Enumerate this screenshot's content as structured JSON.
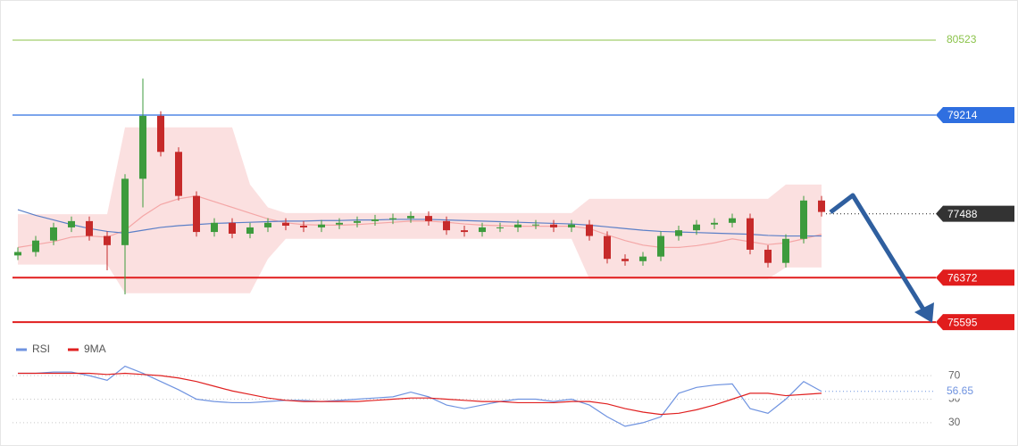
{
  "chart_data": [
    {
      "type": "candlestick",
      "ylim": [
        75300,
        81225
      ],
      "up_color": "#3d9b3d",
      "down_color": "#c62a2a",
      "open": [
        76760,
        76820,
        77020,
        77250,
        77360,
        77100,
        76940,
        78100,
        79200,
        78570,
        77800,
        77170,
        77330,
        77140,
        77250,
        77330,
        77280,
        77250,
        77300,
        77330,
        77360,
        77390,
        77410,
        77450,
        77360,
        77200,
        77170,
        77250,
        77250,
        77300,
        77300,
        77250,
        77300,
        77100,
        76700,
        76660,
        76740,
        77100,
        77200,
        77300,
        77330,
        77410,
        76860,
        76630,
        77050,
        77720
      ],
      "high": [
        76900,
        77100,
        77330,
        77440,
        77440,
        77180,
        78180,
        79850,
        79280,
        78650,
        77880,
        77410,
        77410,
        77330,
        77410,
        77410,
        77360,
        77380,
        77410,
        77440,
        77470,
        77490,
        77530,
        77530,
        77440,
        77280,
        77330,
        77330,
        77380,
        77380,
        77380,
        77380,
        77380,
        77180,
        76780,
        76820,
        77180,
        77280,
        77380,
        77410,
        77490,
        77490,
        76940,
        77130,
        77800,
        77800
      ],
      "low": [
        76680,
        76740,
        76940,
        77170,
        77020,
        76500,
        76080,
        77600,
        78490,
        77720,
        77090,
        77090,
        77060,
        77060,
        77170,
        77200,
        77170,
        77170,
        77220,
        77250,
        77280,
        77310,
        77330,
        77280,
        77120,
        77090,
        77090,
        77170,
        77170,
        77220,
        77170,
        77170,
        77020,
        76620,
        76580,
        76580,
        76660,
        77020,
        77120,
        77220,
        77250,
        76780,
        76550,
        76550,
        76970,
        77440
      ],
      "close": [
        76820,
        77020,
        77250,
        77360,
        77100,
        76940,
        78100,
        79200,
        78570,
        77800,
        77170,
        77330,
        77140,
        77250,
        77330,
        77280,
        77250,
        77300,
        77330,
        77360,
        77390,
        77410,
        77450,
        77360,
        77200,
        77170,
        77250,
        77250,
        77300,
        77300,
        77250,
        77300,
        77100,
        76700,
        76660,
        76740,
        77100,
        77200,
        77300,
        77330,
        77410,
        76860,
        76630,
        77050,
        77720,
        77520
      ],
      "bands": {
        "color": "#f4a6a6",
        "upper": [
          77480,
          77480,
          77480,
          77480,
          77480,
          77480,
          79000,
          79000,
          79000,
          79000,
          79000,
          79000,
          79000,
          78000,
          77600,
          77500,
          77500,
          77500,
          77500,
          77500,
          77500,
          77500,
          77500,
          77500,
          77500,
          77500,
          77500,
          77500,
          77500,
          77500,
          77500,
          77500,
          77750,
          77750,
          77750,
          77750,
          77750,
          77750,
          77750,
          77750,
          77750,
          77750,
          77750,
          78000,
          78000,
          78000
        ],
        "lower": [
          76600,
          76600,
          76600,
          76600,
          76600,
          76600,
          76100,
          76100,
          76100,
          76100,
          76100,
          76100,
          76100,
          76100,
          76700,
          77050,
          77050,
          77050,
          77050,
          77050,
          77050,
          77050,
          77050,
          77050,
          77050,
          77050,
          77050,
          77050,
          77050,
          77050,
          77050,
          77050,
          76350,
          76350,
          76350,
          76350,
          76350,
          76350,
          76350,
          76350,
          76350,
          76350,
          76350,
          76550,
          76550,
          76550
        ],
        "middle": [
          76900,
          76950,
          77000,
          77080,
          77100,
          77080,
          77200,
          77450,
          77650,
          77750,
          77800,
          77700,
          77600,
          77500,
          77400,
          77330,
          77300,
          77290,
          77290,
          77300,
          77320,
          77340,
          77360,
          77360,
          77340,
          77310,
          77290,
          77280,
          77270,
          77270,
          77270,
          77270,
          77230,
          77120,
          77020,
          76940,
          76900,
          76900,
          76930,
          76980,
          77050,
          77000,
          76950,
          76980,
          77050,
          77130
        ]
      },
      "ma": {
        "color": "#5b7fc7",
        "values": [
          77560,
          77460,
          77380,
          77300,
          77230,
          77180,
          77150,
          77200,
          77250,
          77280,
          77300,
          77320,
          77330,
          77340,
          77350,
          77360,
          77360,
          77370,
          77370,
          77380,
          77380,
          77390,
          77390,
          77390,
          77380,
          77370,
          77360,
          77350,
          77340,
          77330,
          77320,
          77310,
          77290,
          77260,
          77230,
          77200,
          77180,
          77170,
          77160,
          77150,
          77140,
          77130,
          77110,
          77100,
          77100,
          77100
        ]
      },
      "levels": [
        {
          "value": 80523,
          "color": "#8bc34a",
          "style": "plain"
        },
        {
          "value": 79214,
          "color": "#2f6fe0",
          "style": "badge"
        },
        {
          "value": 77488,
          "color": "#333333",
          "style": "current"
        },
        {
          "value": 76372,
          "color": "#e11d1d",
          "style": "badge"
        },
        {
          "value": 75595,
          "color": "#e11d1d",
          "style": "badge"
        }
      ]
    },
    {
      "type": "line",
      "ylim": [
        14,
        86
      ],
      "yticks": [
        30,
        50,
        70
      ],
      "grid": true,
      "series": [
        {
          "name": "RSI",
          "color": "#6f93e0",
          "values": [
            72,
            72,
            73,
            73,
            70,
            66,
            78,
            72,
            65,
            58,
            50,
            48,
            47,
            47,
            48,
            49,
            49,
            48,
            49,
            50,
            51,
            52,
            56,
            52,
            45,
            42,
            45,
            48,
            50,
            50,
            48,
            50,
            45,
            35,
            27,
            30,
            35,
            55,
            60,
            62,
            63,
            42,
            38,
            50,
            65,
            56.65
          ]
        },
        {
          "name": "9MA",
          "color": "#e02020",
          "values": [
            72,
            72,
            72,
            72,
            72,
            71,
            72,
            71,
            70,
            68,
            65,
            61,
            57,
            54,
            51,
            49,
            48,
            48,
            48,
            48,
            49,
            50,
            51,
            51,
            50,
            49,
            48,
            48,
            47,
            47,
            47,
            48,
            48,
            46,
            42,
            39,
            37,
            38,
            41,
            45,
            50,
            55,
            55,
            53,
            54,
            55
          ]
        }
      ]
    }
  ]
}
